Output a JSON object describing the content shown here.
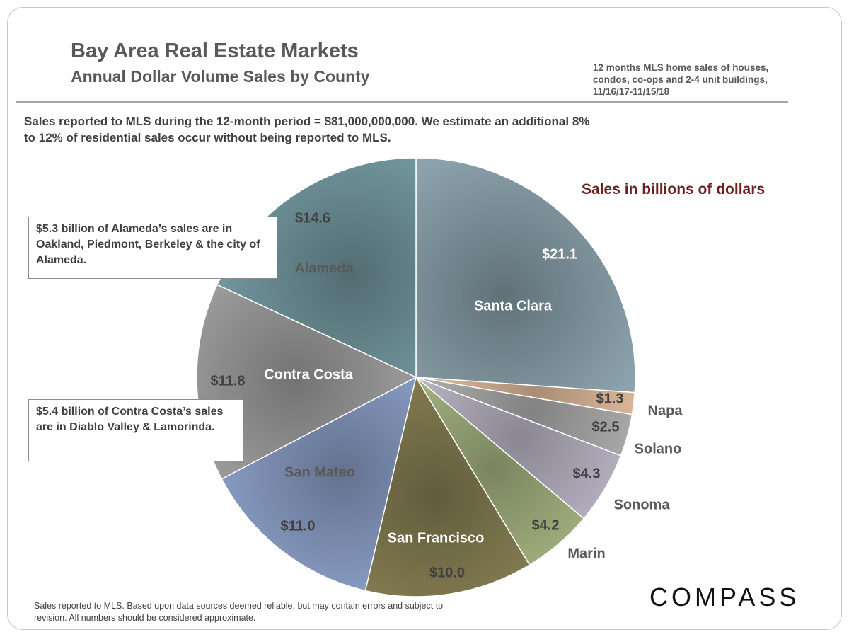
{
  "header": {
    "title": "Bay Area Real Estate Markets",
    "subtitle": "Annual Dollar Volume Sales by County",
    "period_note": "12 months MLS home sales of houses, condos, co-ops and 2-4 unit buildings, 11/16/17-11/15/18"
  },
  "intro": "Sales reported to MLS during the 12-month period = $81,000,000,000. We estimate an additional 8% to 12% of residential sales occur without being reported to MLS.",
  "annotations": {
    "alameda": "$5.3 billion of Alameda’s sales are in Oakland, Piedmont, Berkeley & the city of Alameda.",
    "contra_costa": "$5.4 billion of Contra Costa’s sales are in Diablo Valley & Lamorinda."
  },
  "footer": "Sales reported to MLS. Based upon data sources deemed reliable, but may contain errors and  subject to revision. All numbers should be considered approximate.",
  "logo": "COMPASS",
  "chart_data": {
    "type": "pie",
    "unit_label": "Sales in billions of dollars",
    "start": "top, clockwise",
    "slices": [
      {
        "name": "Santa Clara",
        "value": 21.1,
        "label": "$21.1",
        "color": "#8fa6b1"
      },
      {
        "name": "Napa",
        "value": 1.3,
        "label": "$1.3",
        "color": "#f8d0ae"
      },
      {
        "name": "Solano",
        "value": 2.5,
        "label": "$2.5",
        "color": "#bfbfbf"
      },
      {
        "name": "Sonoma",
        "value": 4.3,
        "label": "$4.3",
        "color": "#cbc5d6"
      },
      {
        "name": "Marin",
        "value": 4.2,
        "label": "$4.2",
        "color": "#b4c38b"
      },
      {
        "name": "San Francisco",
        "value": 10.0,
        "label": "$10.0",
        "color": "#8f8758"
      },
      {
        "name": "San Mateo",
        "value": 11.0,
        "label": "$11.0",
        "color": "#93a8d2"
      },
      {
        "name": "Contra Costa",
        "value": 11.8,
        "label": "$11.8",
        "color": "#a9a9a9"
      },
      {
        "name": "Alameda",
        "value": 14.6,
        "label": "$14.6",
        "color": "#78a0a7"
      }
    ]
  }
}
